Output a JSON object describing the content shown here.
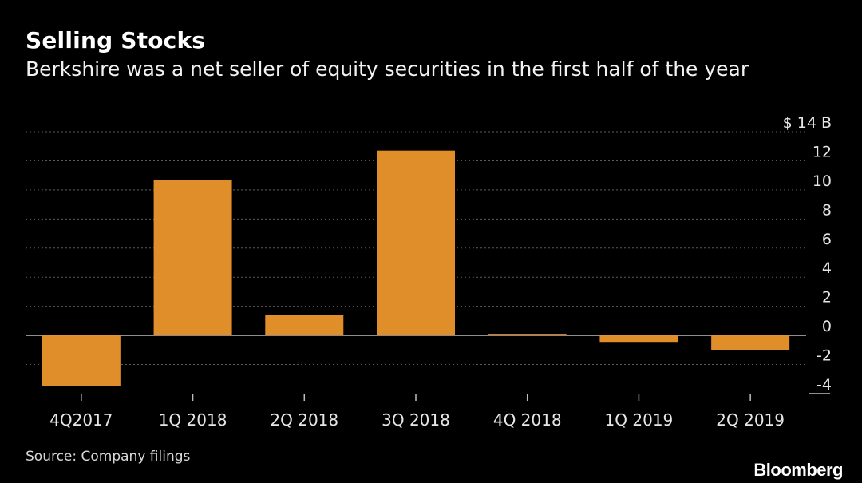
{
  "header": {
    "title": "Selling Stocks",
    "subtitle": "Berkshire was a net seller of equity securities in the first half of the year"
  },
  "footer": {
    "source": "Source: Company filings",
    "brand": "Bloomberg"
  },
  "colors": {
    "background": "#000000",
    "bar": "#e08e2a",
    "grid": "#5a5a5a",
    "axis_text": "#e6e6e6"
  },
  "chart_data": {
    "type": "bar",
    "title": "Selling Stocks",
    "subtitle": "Berkshire was a net seller of equity securities in the first half of the year",
    "categories": [
      "4Q2017",
      "1Q 2018",
      "2Q 2018",
      "3Q 2018",
      "4Q 2018",
      "1Q 2019",
      "2Q 2019"
    ],
    "values": [
      -3.5,
      10.7,
      1.4,
      12.7,
      0.1,
      -0.5,
      -1.0
    ],
    "ylim": [
      -4,
      14
    ],
    "yticks": [
      14,
      12,
      10,
      8,
      6,
      4,
      2,
      0,
      -2,
      -4
    ],
    "ytick_labels": [
      "$ 14 B",
      "12",
      "10",
      "8",
      "6",
      "4",
      "2",
      "0",
      "-2",
      "-4"
    ],
    "grid": true,
    "y_axis_position": "right"
  }
}
